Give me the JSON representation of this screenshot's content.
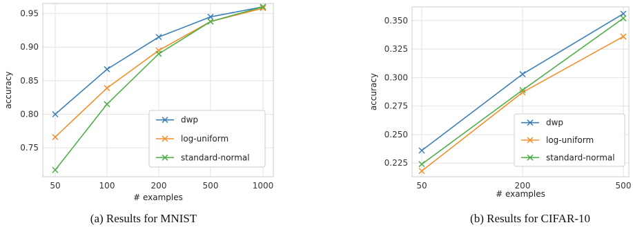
{
  "chart_data": [
    {
      "type": "line",
      "caption": "(a) Results for MNIST",
      "xlabel": "# examples",
      "ylabel": "accuracy",
      "categories": [
        "50",
        "100",
        "200",
        "500",
        "1000"
      ],
      "ylim": [
        0.707,
        0.965
      ],
      "yticks": [
        0.75,
        0.8,
        0.85,
        0.9,
        0.95
      ],
      "ytick_labels": [
        "0.75",
        "0.80",
        "0.85",
        "0.90",
        "0.95"
      ],
      "grid": true,
      "legend_position": "lower-right",
      "marker": "x",
      "series": [
        {
          "name": "dwp",
          "color": "#3b7fb8",
          "values": [
            0.8,
            0.867,
            0.915,
            0.945,
            0.96
          ]
        },
        {
          "name": "log-uniform",
          "color": "#f28e2b",
          "values": [
            0.766,
            0.839,
            0.895,
            0.938,
            0.958
          ]
        },
        {
          "name": "standard-normal",
          "color": "#4fae48",
          "values": [
            0.717,
            0.815,
            0.89,
            0.938,
            0.96
          ]
        }
      ]
    },
    {
      "type": "line",
      "caption": "(b) Results for CIFAR-10",
      "xlabel": "# examples",
      "ylabel": "accuracy",
      "categories": [
        "50",
        "200",
        "500"
      ],
      "ylim": [
        0.213,
        0.362
      ],
      "yticks": [
        0.225,
        0.25,
        0.275,
        0.3,
        0.325,
        0.35
      ],
      "ytick_labels": [
        "0.225",
        "0.250",
        "0.275",
        "0.300",
        "0.325",
        "0.350"
      ],
      "grid": true,
      "legend_position": "lower-right",
      "marker": "x",
      "series": [
        {
          "name": "dwp",
          "color": "#3b7fb8",
          "values": [
            0.236,
            0.303,
            0.356
          ]
        },
        {
          "name": "log-uniform",
          "color": "#f28e2b",
          "values": [
            0.218,
            0.287,
            0.336
          ]
        },
        {
          "name": "standard-normal",
          "color": "#4fae48",
          "values": [
            0.224,
            0.289,
            0.352
          ]
        }
      ]
    }
  ]
}
